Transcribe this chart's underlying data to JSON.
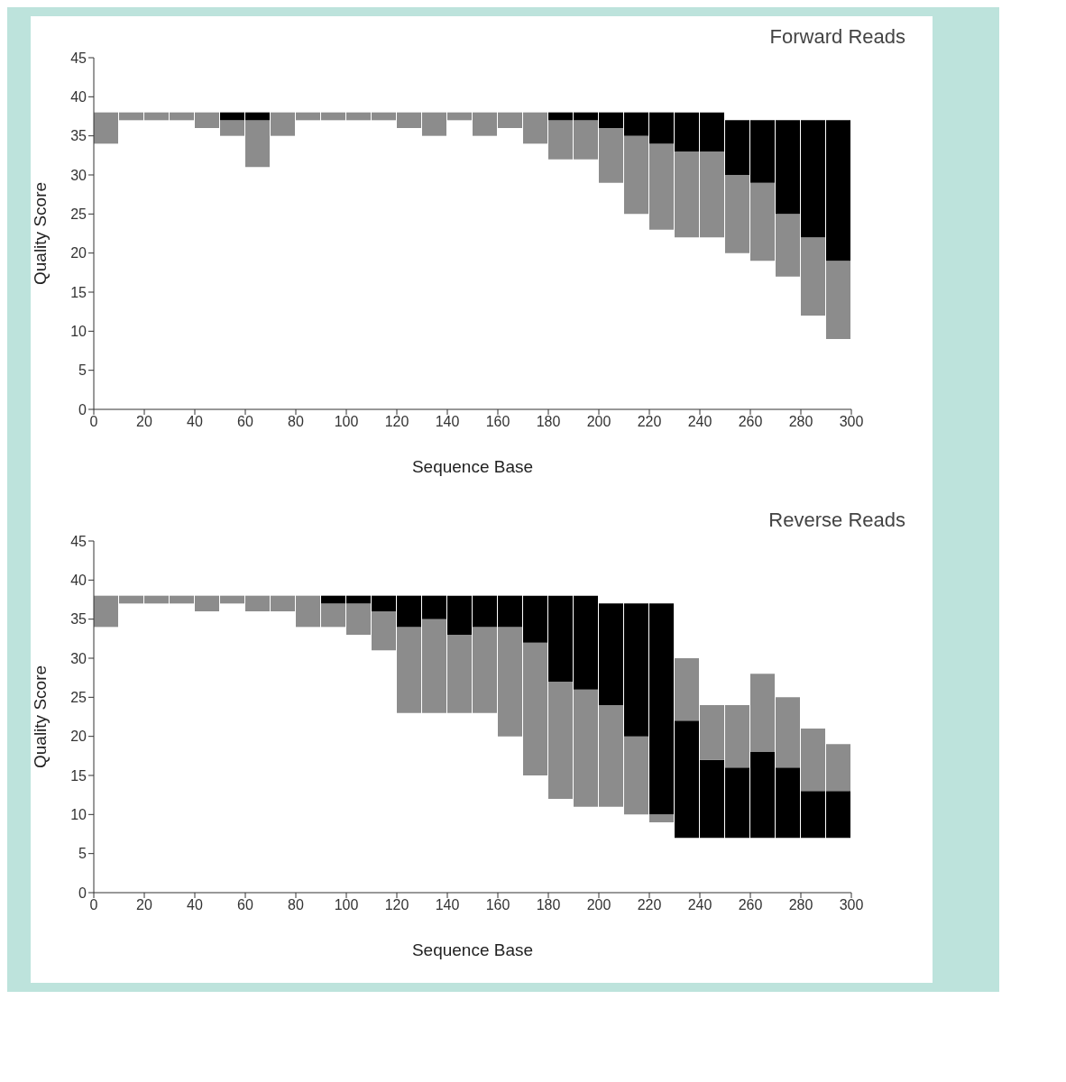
{
  "chart_data": [
    {
      "type": "bar",
      "title": "Forward Reads",
      "xlabel": "Sequence Base",
      "ylabel": "Quality Score",
      "x": [
        5,
        15,
        25,
        35,
        45,
        55,
        65,
        75,
        85,
        95,
        105,
        115,
        125,
        135,
        145,
        155,
        165,
        175,
        185,
        195,
        205,
        215,
        225,
        235,
        245,
        255,
        265,
        275,
        285,
        295
      ],
      "xlim": [
        0,
        300
      ],
      "xticks": [
        0,
        20,
        40,
        60,
        80,
        100,
        120,
        140,
        160,
        180,
        200,
        220,
        240,
        260,
        280,
        300
      ],
      "ylim": [
        0,
        45
      ],
      "yticks": [
        0,
        5,
        10,
        15,
        20,
        25,
        30,
        35,
        40,
        45
      ],
      "series": [
        {
          "color": "#8c8c8c",
          "base": [
            34,
            37,
            37,
            37,
            36,
            35,
            31,
            35,
            37,
            37,
            37,
            37,
            36,
            35,
            37,
            35,
            36,
            34,
            32,
            32,
            29,
            25,
            23,
            22,
            22,
            20,
            19,
            17,
            12,
            9
          ],
          "values": [
            4,
            1,
            1,
            1,
            2,
            2,
            6,
            3,
            1,
            1,
            1,
            1,
            2,
            3,
            1,
            3,
            2,
            4,
            5,
            5,
            7,
            10,
            11,
            11,
            11,
            10,
            10,
            8,
            10,
            10
          ]
        },
        {
          "color": "#000000",
          "base": [
            null,
            null,
            null,
            null,
            null,
            37,
            37,
            null,
            null,
            null,
            null,
            null,
            null,
            null,
            null,
            null,
            null,
            null,
            37,
            37,
            36,
            35,
            34,
            33,
            33,
            30,
            29,
            25,
            22,
            19
          ],
          "values": [
            null,
            null,
            null,
            null,
            null,
            1,
            1,
            null,
            null,
            null,
            null,
            null,
            null,
            null,
            null,
            null,
            null,
            null,
            1,
            1,
            2,
            3,
            4,
            5,
            5,
            7,
            8,
            12,
            15,
            18
          ]
        }
      ]
    },
    {
      "type": "bar",
      "title": "Reverse Reads",
      "xlabel": "Sequence Base",
      "ylabel": "Quality Score",
      "x": [
        5,
        15,
        25,
        35,
        45,
        55,
        65,
        75,
        85,
        95,
        105,
        115,
        125,
        135,
        145,
        155,
        165,
        175,
        185,
        195,
        205,
        215,
        225,
        235,
        245,
        255,
        265,
        275,
        285,
        295
      ],
      "xlim": [
        0,
        300
      ],
      "xticks": [
        0,
        20,
        40,
        60,
        80,
        100,
        120,
        140,
        160,
        180,
        200,
        220,
        240,
        260,
        280,
        300
      ],
      "ylim": [
        0,
        45
      ],
      "yticks": [
        0,
        5,
        10,
        15,
        20,
        25,
        30,
        35,
        40,
        45
      ],
      "series": [
        {
          "color": "#8c8c8c",
          "base": [
            34,
            37,
            37,
            37,
            36,
            37,
            36,
            36,
            34,
            34,
            33,
            31,
            23,
            23,
            23,
            23,
            20,
            15,
            12,
            11,
            11,
            10,
            9,
            null,
            null,
            null,
            null,
            null,
            null,
            null
          ],
          "values": [
            4,
            1,
            1,
            1,
            2,
            1,
            2,
            2,
            4,
            3,
            4,
            5,
            11,
            12,
            10,
            11,
            14,
            17,
            15,
            15,
            13,
            10,
            1,
            null,
            null,
            null,
            null,
            null,
            null,
            null
          ]
        },
        {
          "color": "#000000",
          "base": [
            null,
            null,
            null,
            null,
            null,
            null,
            null,
            null,
            null,
            37,
            37,
            36,
            34,
            35,
            33,
            34,
            34,
            32,
            27,
            26,
            24,
            20,
            10,
            7,
            7,
            7,
            7,
            7,
            7,
            7
          ],
          "values": [
            null,
            null,
            null,
            null,
            null,
            null,
            null,
            null,
            null,
            1,
            1,
            2,
            4,
            3,
            5,
            4,
            4,
            6,
            11,
            12,
            13,
            17,
            27,
            15,
            10,
            9,
            11,
            9,
            6,
            6
          ]
        },
        {
          "color": "#8c8c8c",
          "base": [
            null,
            null,
            null,
            null,
            null,
            null,
            null,
            null,
            null,
            null,
            null,
            null,
            null,
            null,
            null,
            null,
            null,
            null,
            null,
            null,
            null,
            null,
            null,
            22,
            17,
            16,
            18,
            16,
            13,
            13
          ],
          "values": [
            null,
            null,
            null,
            null,
            null,
            null,
            null,
            null,
            null,
            null,
            null,
            null,
            null,
            null,
            null,
            null,
            null,
            null,
            null,
            null,
            null,
            null,
            null,
            8,
            7,
            8,
            10,
            9,
            8,
            6
          ]
        }
      ]
    }
  ]
}
